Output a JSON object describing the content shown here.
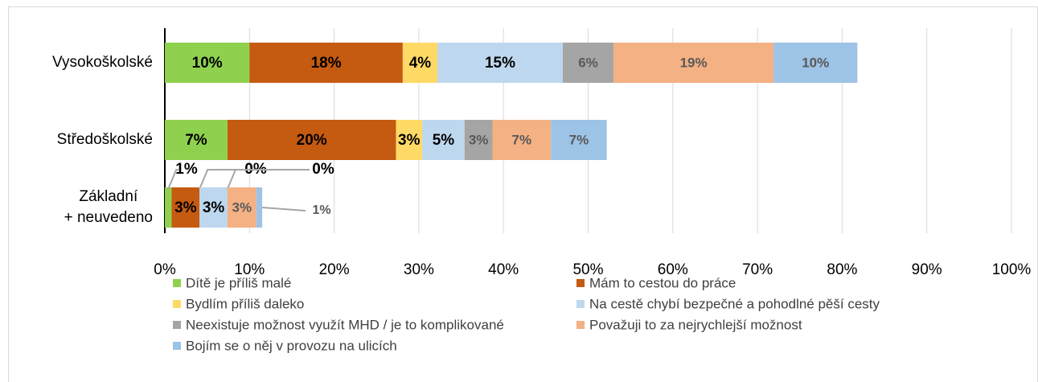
{
  "chart_data": {
    "type": "stacked_bar_horizontal",
    "categories": [
      "Vysokoškolské",
      "Středoškolské",
      "Základní\n+ neuvedeno"
    ],
    "series": [
      {
        "name": "Dítě je příliš malé",
        "color": "#8fd14f",
        "values": [
          10.0,
          7.4,
          0.8
        ],
        "value_labels": [
          "10%",
          "7%",
          "1%"
        ]
      },
      {
        "name": "Mám to cestou do práce",
        "color": "#c55a11",
        "values": [
          18.1,
          19.9,
          3.3
        ],
        "value_labels": [
          "18%",
          "20%",
          "3%"
        ]
      },
      {
        "name": "Bydlím příliš daleko",
        "color": "#ffd966",
        "values": [
          4.1,
          3.1,
          0
        ],
        "value_labels": [
          "4%",
          "3%",
          "0%"
        ]
      },
      {
        "name": "Na cestě chybí bezpečné a pohodlné pěší cesty",
        "color": "#bdd7ee",
        "values": [
          14.8,
          5.0,
          3.3
        ],
        "value_labels": [
          "15%",
          "5%",
          "3%"
        ]
      },
      {
        "name": "Neexistuje možnost využít MHD / je to komplikované",
        "color": "#a5a5a5",
        "values": [
          6.0,
          3.3,
          0
        ],
        "value_labels": [
          "6%",
          "3%",
          "0%"
        ]
      },
      {
        "name": "Považuji to za nejrychlejší možnost",
        "color": "#f4b183",
        "values": [
          18.9,
          6.9,
          3.4
        ],
        "value_labels": [
          "19%",
          "7%",
          "3%"
        ]
      },
      {
        "name": "Bojím se o něj v provozu na ulicích",
        "color": "#9dc3e6",
        "values": [
          9.9,
          6.6,
          0.7
        ],
        "value_labels": [
          "10%",
          "7%",
          "1%"
        ]
      }
    ],
    "xlim": [
      0,
      100
    ],
    "xticks": [
      {
        "value": 0,
        "label": "0%"
      },
      {
        "value": 10,
        "label": "10%"
      },
      {
        "value": 20,
        "label": "20%"
      },
      {
        "value": 30,
        "label": "30%"
      },
      {
        "value": 40,
        "label": "40%"
      },
      {
        "value": 50,
        "label": "50%"
      },
      {
        "value": 60,
        "label": "60%"
      },
      {
        "value": 70,
        "label": "70%"
      },
      {
        "value": 80,
        "label": "80%"
      },
      {
        "value": 90,
        "label": "90%"
      },
      {
        "value": 100,
        "label": "100%"
      }
    ],
    "grid": true,
    "legend": "bottom"
  }
}
